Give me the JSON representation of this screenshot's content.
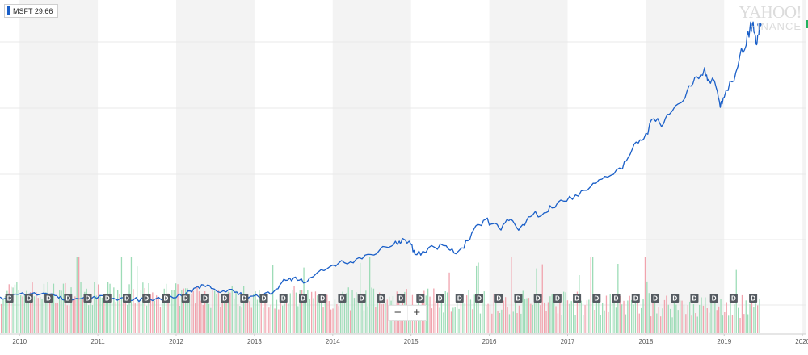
{
  "legend": {
    "symbol": "MSFT",
    "value": "29.66",
    "color": "#1a5fc8"
  },
  "watermark": {
    "brand": "YAHOO!",
    "sub": "FINANCE"
  },
  "zoom": {
    "minus": "−",
    "plus": "+"
  },
  "colors": {
    "line": "#1a5fc8",
    "band": "#f3f3f3",
    "grid": "#e8e8e8",
    "vol_up": "#9ddcb7",
    "vol_down": "#f1a3ad",
    "marker_bg": "#555b61",
    "edge_tag": "#21b35e"
  },
  "chart_data": {
    "type": "line",
    "xlabel": "",
    "ylabel": "",
    "x_ticks": [
      "2010",
      "2011",
      "2012",
      "2013",
      "2014",
      "2015",
      "2016",
      "2017",
      "2018",
      "2019",
      "2020"
    ],
    "xlim": [
      2009.75,
      2020.05
    ],
    "grid": true,
    "series": [
      {
        "name": "MSFT",
        "points": [
          [
            2009.75,
            25.2
          ],
          [
            2009.9,
            25.9
          ],
          [
            2010.0,
            26.4
          ],
          [
            2010.15,
            26.5
          ],
          [
            2010.3,
            26.7
          ],
          [
            2010.45,
            25.8
          ],
          [
            2010.55,
            24.2
          ],
          [
            2010.65,
            23.9
          ],
          [
            2010.8,
            24.7
          ],
          [
            2010.95,
            25.4
          ],
          [
            2011.1,
            25.0
          ],
          [
            2011.3,
            24.9
          ],
          [
            2011.45,
            24.0
          ],
          [
            2011.6,
            24.6
          ],
          [
            2011.7,
            23.8
          ],
          [
            2011.85,
            24.5
          ],
          [
            2012.0,
            25.0
          ],
          [
            2012.15,
            27.5
          ],
          [
            2012.25,
            28.8
          ],
          [
            2012.35,
            29.8
          ],
          [
            2012.45,
            28.5
          ],
          [
            2012.6,
            27.6
          ],
          [
            2012.75,
            27.0
          ],
          [
            2012.85,
            26.2
          ],
          [
            2012.95,
            25.5
          ],
          [
            2013.1,
            25.6
          ],
          [
            2013.25,
            27.4
          ],
          [
            2013.35,
            30.8
          ],
          [
            2013.45,
            32.5
          ],
          [
            2013.55,
            31.6
          ],
          [
            2013.65,
            30.8
          ],
          [
            2013.75,
            33.0
          ],
          [
            2013.85,
            35.7
          ],
          [
            2014.0,
            37.5
          ],
          [
            2014.15,
            38.4
          ],
          [
            2014.3,
            39.8
          ],
          [
            2014.45,
            41.6
          ],
          [
            2014.6,
            43.3
          ],
          [
            2014.75,
            44.8
          ],
          [
            2014.85,
            46.7
          ],
          [
            2014.9,
            47.6
          ],
          [
            2015.0,
            45.5
          ],
          [
            2015.05,
            41.6
          ],
          [
            2015.15,
            42.8
          ],
          [
            2015.3,
            44.3
          ],
          [
            2015.45,
            44.9
          ],
          [
            2015.55,
            42.1
          ],
          [
            2015.65,
            44.1
          ],
          [
            2015.75,
            47.3
          ],
          [
            2015.85,
            53.1
          ],
          [
            2015.95,
            55.0
          ],
          [
            2016.05,
            53.4
          ],
          [
            2016.15,
            51.0
          ],
          [
            2016.25,
            54.6
          ],
          [
            2016.35,
            51.9
          ],
          [
            2016.45,
            52.8
          ],
          [
            2016.55,
            56.6
          ],
          [
            2016.7,
            57.6
          ],
          [
            2016.8,
            59.5
          ],
          [
            2016.95,
            62.1
          ],
          [
            2017.1,
            64.5
          ],
          [
            2017.25,
            66.3
          ],
          [
            2017.4,
            70.3
          ],
          [
            2017.55,
            72.0
          ],
          [
            2017.7,
            74.5
          ],
          [
            2017.8,
            80.2
          ],
          [
            2017.9,
            84.3
          ],
          [
            2018.0,
            88.2
          ],
          [
            2018.1,
            93.8
          ],
          [
            2018.2,
            90.8
          ],
          [
            2018.3,
            95.5
          ],
          [
            2018.45,
            100.0
          ],
          [
            2018.55,
            106.5
          ],
          [
            2018.65,
            110.0
          ],
          [
            2018.75,
            113.5
          ],
          [
            2018.8,
            109.0
          ],
          [
            2018.9,
            105.5
          ],
          [
            2018.95,
            98.2
          ],
          [
            2019.0,
            102.0
          ],
          [
            2019.1,
            108.0
          ],
          [
            2019.2,
            118.0
          ],
          [
            2019.28,
            122.0
          ],
          [
            2019.33,
            129.0
          ],
          [
            2019.36,
            130.2
          ],
          [
            2019.4,
            125.5
          ],
          [
            2019.42,
            123.2
          ],
          [
            2019.45,
            130.0
          ]
        ]
      }
    ],
    "volume_scale_max": 100,
    "volume_seed": 7,
    "dividends": {
      "label": "D",
      "dates": [
        2009.87,
        2010.12,
        2010.37,
        2010.62,
        2010.87,
        2011.12,
        2011.37,
        2011.62,
        2011.87,
        2012.12,
        2012.37,
        2012.62,
        2012.87,
        2013.12,
        2013.37,
        2013.62,
        2013.87,
        2014.12,
        2014.37,
        2014.62,
        2014.87,
        2015.12,
        2015.37,
        2015.62,
        2015.87,
        2016.12,
        2016.37,
        2016.62,
        2016.87,
        2017.12,
        2017.37,
        2017.62,
        2017.87,
        2018.12,
        2018.37,
        2018.62,
        2018.87,
        2019.12,
        2019.37
      ]
    }
  }
}
